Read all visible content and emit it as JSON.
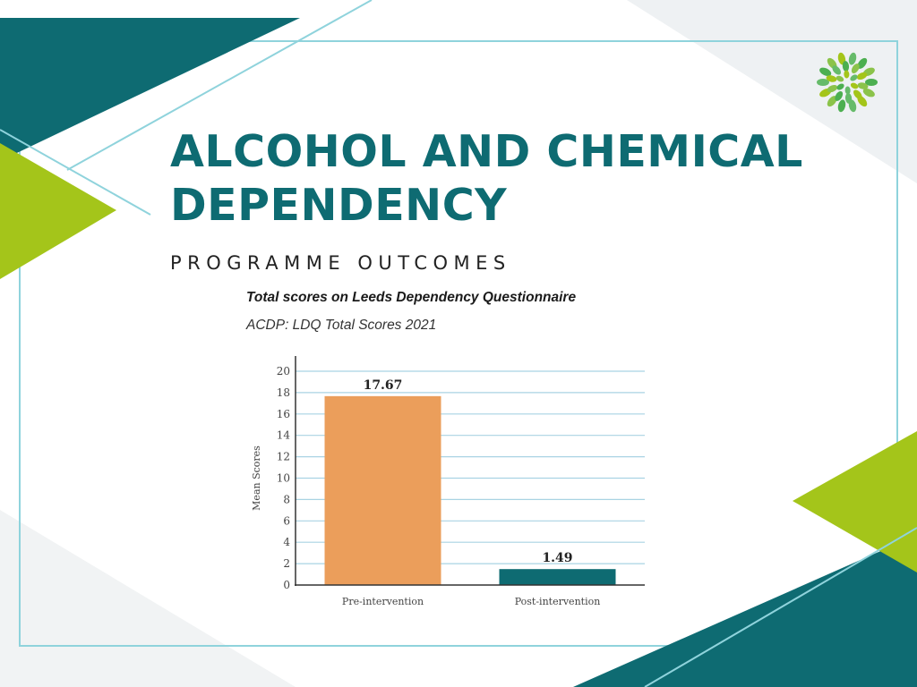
{
  "slide": {
    "title": "ALCOHOL AND CHEMICAL DEPENDENCY",
    "subtitle": "PROGRAMME OUTCOMES",
    "logo_icon": "leaf-flower-logo-icon"
  },
  "colors": {
    "teal": "#0e6b72",
    "lime": "#a4c51a",
    "outline": "#8fd3dc",
    "bar_pre": "#eb9e5b",
    "bar_post": "#0e6b72",
    "gridline": "#a9d3e3"
  },
  "chart_data": {
    "type": "bar",
    "title": "Total scores on Leeds Dependency Questionnaire",
    "subtitle": "ACDP: LDQ Total Scores 2021",
    "ylabel": "Mean Scores",
    "xlabel": "",
    "categories": [
      "Pre-intervention",
      "Post-intervention"
    ],
    "values": [
      17.67,
      1.49
    ],
    "data_labels": [
      "17.67",
      "1.49"
    ],
    "ylim": [
      0,
      20
    ],
    "yticks": [
      0,
      2,
      4,
      6,
      8,
      10,
      12,
      14,
      16,
      18,
      20
    ],
    "grid": true,
    "legend": "none"
  }
}
